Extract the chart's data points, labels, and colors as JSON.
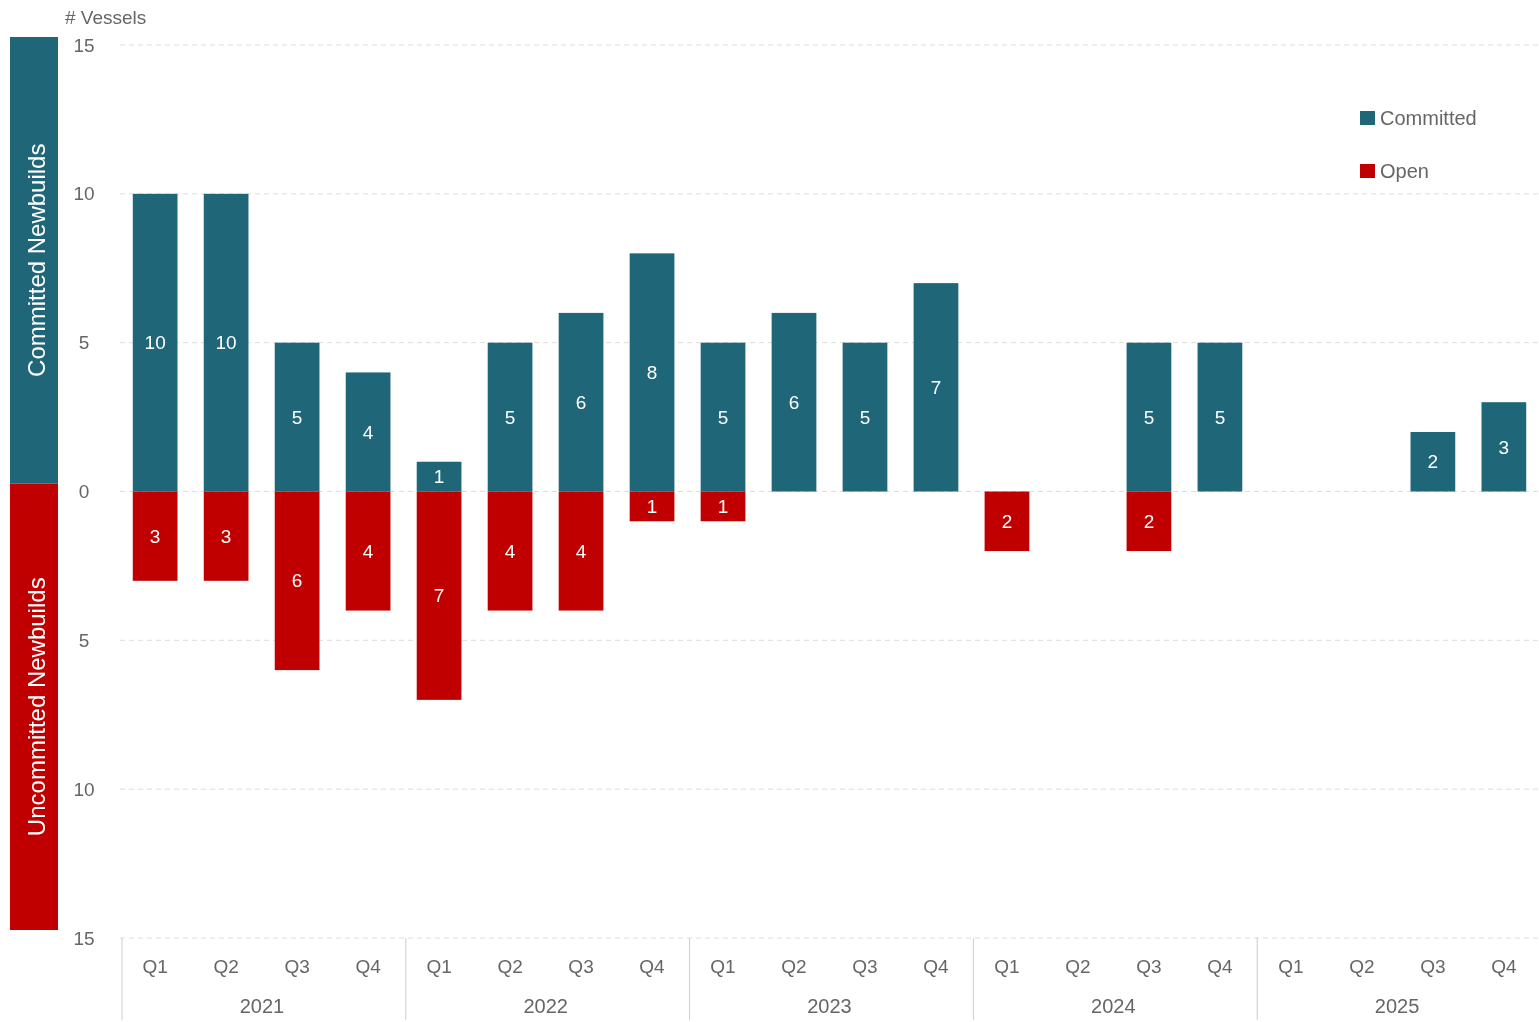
{
  "chart_data": [
    {
      "type": "bar",
      "title": "# Vessels",
      "ylabel": "Committed Newbuilds",
      "categories": [
        null,
        null,
        null,
        null,
        null,
        null,
        null,
        null,
        null,
        null,
        null,
        null,
        null,
        null,
        null,
        null,
        null,
        null,
        null,
        null
      ],
      "series": [
        {
          "name": "Committed",
          "color": "#1f6678",
          "values": [
            10,
            10,
            5,
            4,
            1,
            5,
            6,
            8,
            5,
            6,
            5,
            7,
            null,
            null,
            5,
            5,
            null,
            null,
            2,
            3
          ]
        }
      ],
      "ylim": [
        0,
        15
      ],
      "yticks": [
        0,
        5,
        10,
        15
      ],
      "grid": "y",
      "legend": "top right",
      "data_labels": true
    },
    {
      "type": "bar",
      "ylabel": "Uncommitted Newbuilds",
      "categories": [
        "Q1",
        "Q2",
        "Q3",
        "Q4",
        "Q1",
        "Q2",
        "Q3",
        "Q4",
        "Q1",
        "Q2",
        "Q3",
        "Q4",
        "Q1",
        "Q2",
        "Q3",
        "Q4",
        "Q1",
        "Q2",
        "Q3",
        "Q4"
      ],
      "series": [
        {
          "name": "Open",
          "color": "#c00000",
          "values": [
            3,
            3,
            6,
            4,
            7,
            4,
            4,
            1,
            1,
            null,
            null,
            null,
            2,
            null,
            2,
            null,
            null,
            null,
            null,
            null
          ]
        }
      ],
      "ylim": [
        15,
        0
      ],
      "yticks": [
        5,
        10,
        15
      ],
      "grid": "y",
      "legend": "top right",
      "data_labels": true,
      "annotations": [
        "2021",
        "2022",
        "2023",
        "2024",
        "2025"
      ]
    }
  ]
}
